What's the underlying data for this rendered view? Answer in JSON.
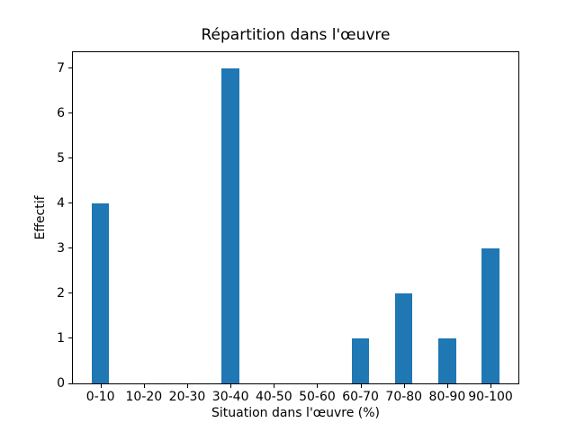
{
  "figure": {
    "background": "#ffffff"
  },
  "chart_data": {
    "type": "bar",
    "title": "Répartition dans l'œuvre",
    "xlabel": "Situation dans l'œuvre (%)",
    "ylabel": "Effectif",
    "categories": [
      "0-10",
      "10-20",
      "20-30",
      "30-40",
      "40-50",
      "50-60",
      "60-70",
      "70-80",
      "80-90",
      "90-100"
    ],
    "values": [
      4,
      0,
      0,
      7,
      0,
      0,
      1,
      2,
      1,
      3
    ],
    "y_ticks": [
      0,
      1,
      2,
      3,
      4,
      5,
      6,
      7
    ],
    "ylim": [
      0,
      7.35
    ],
    "bar_color": "#1f77b4",
    "axis_color": "#000000",
    "grid": false,
    "legend": null
  }
}
